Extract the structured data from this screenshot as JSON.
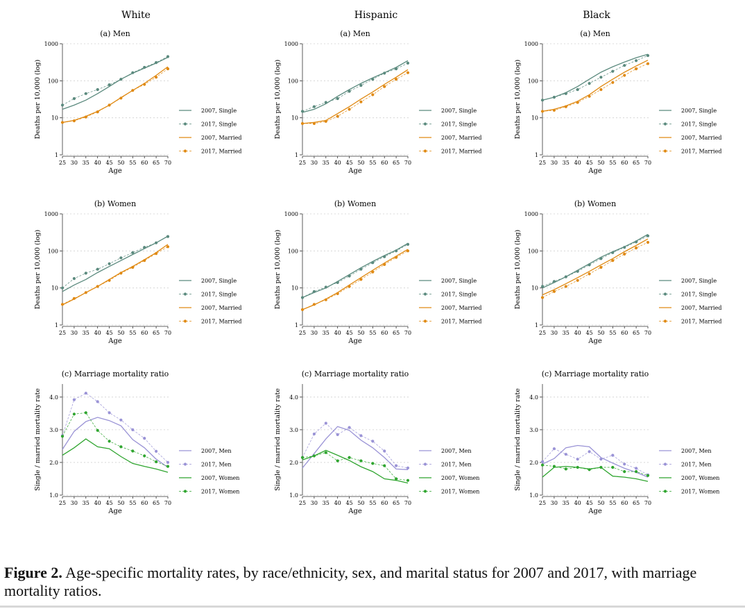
{
  "figure": {
    "columns": [
      "White",
      "Hispanic",
      "Black"
    ],
    "caption_label": "Figure 2.",
    "caption_text": " Age-specific mortality rates, by race/ethnicity, sex, and marital status for 2007 and 2017, with marriage mortality ratios."
  },
  "colors": {
    "single": "#5b8a7e",
    "married": "#e08a14",
    "men": "#9a93d6",
    "women": "#2fa52f",
    "grid": "#cfcfcf"
  },
  "chart_data": [
    {
      "id": "white-men",
      "column": "White",
      "row": 0,
      "type": "line",
      "title": "(a) Men",
      "xlabel": "Age",
      "ylabel": "Deaths per 10,000 (log)",
      "yscale": "log",
      "ylim": [
        1,
        1000
      ],
      "yticks": [
        1,
        10,
        100,
        1000
      ],
      "yticklabels": [
        "1",
        "10",
        "100",
        "1000"
      ],
      "x": [
        25,
        30,
        35,
        40,
        45,
        50,
        55,
        60,
        65,
        70
      ],
      "series": [
        {
          "name": "2007, Single",
          "kind": "single",
          "style": "line",
          "values": [
            17,
            22,
            30,
            45,
            70,
            110,
            160,
            220,
            300,
            430
          ]
        },
        {
          "name": "2017, Single",
          "kind": "single",
          "style": "dots",
          "values": [
            22,
            33,
            45,
            58,
            78,
            110,
            165,
            230,
            310,
            450
          ]
        },
        {
          "name": "2007, Married",
          "kind": "married",
          "style": "line",
          "values": [
            7.5,
            8.5,
            11,
            15,
            22,
            35,
            55,
            85,
            140,
            240
          ]
        },
        {
          "name": "2017, Married",
          "kind": "married",
          "style": "dots",
          "values": [
            7.5,
            8.3,
            10.5,
            14.5,
            22,
            34,
            55,
            80,
            125,
            210
          ]
        }
      ]
    },
    {
      "id": "hispanic-men",
      "column": "Hispanic",
      "row": 0,
      "type": "line",
      "title": "(a) Men",
      "xlabel": "Age",
      "ylabel": "Deaths per 10,000 (log)",
      "yscale": "log",
      "ylim": [
        1,
        1000
      ],
      "yticks": [
        1,
        10,
        100,
        1000
      ],
      "yticklabels": [
        "1",
        "10",
        "100",
        "1000"
      ],
      "x": [
        25,
        30,
        35,
        40,
        45,
        50,
        55,
        60,
        65,
        70
      ],
      "series": [
        {
          "name": "2007, Single",
          "kind": "single",
          "style": "line",
          "values": [
            14,
            17,
            24,
            38,
            58,
            85,
            120,
            165,
            230,
            350
          ]
        },
        {
          "name": "2017, Single",
          "kind": "single",
          "style": "dots",
          "values": [
            15,
            20,
            26,
            33,
            52,
            75,
            110,
            160,
            210,
            300
          ]
        },
        {
          "name": "2007, Married",
          "kind": "married",
          "style": "line",
          "values": [
            7,
            7.5,
            8.5,
            13,
            20,
            32,
            50,
            80,
            125,
            200
          ]
        },
        {
          "name": "2017, Married",
          "kind": "married",
          "style": "dots",
          "values": [
            7,
            7,
            8,
            11,
            17,
            27,
            42,
            70,
            110,
            165
          ]
        }
      ]
    },
    {
      "id": "black-men",
      "column": "Black",
      "row": 0,
      "type": "line",
      "title": "(a) Men",
      "xlabel": "Age",
      "ylabel": "Deaths per 10,000 (log)",
      "yscale": "log",
      "ylim": [
        1,
        1000
      ],
      "yticks": [
        1,
        10,
        100,
        1000
      ],
      "yticklabels": [
        "1",
        "10",
        "100",
        "1000"
      ],
      "x": [
        25,
        30,
        35,
        40,
        45,
        50,
        55,
        60,
        65,
        70
      ],
      "series": [
        {
          "name": "2007, Single",
          "kind": "single",
          "style": "line",
          "values": [
            30,
            36,
            48,
            70,
            110,
            170,
            240,
            320,
            420,
            520
          ]
        },
        {
          "name": "2017, Single",
          "kind": "single",
          "style": "dots",
          "values": [
            30,
            36,
            45,
            58,
            85,
            125,
            180,
            260,
            350,
            480
          ]
        },
        {
          "name": "2007, Married",
          "kind": "married",
          "style": "line",
          "values": [
            15,
            17,
            21,
            28,
            42,
            70,
            110,
            170,
            250,
            360
          ]
        },
        {
          "name": "2017, Married",
          "kind": "married",
          "style": "dots",
          "values": [
            15,
            16,
            20,
            26,
            38,
            58,
            90,
            140,
            210,
            290
          ]
        }
      ]
    },
    {
      "id": "white-women",
      "column": "White",
      "row": 1,
      "type": "line",
      "title": "(b) Women",
      "xlabel": "Age",
      "ylabel": "Deaths per 10,000 (log)",
      "yscale": "log",
      "ylim": [
        1,
        1000
      ],
      "yticks": [
        1,
        10,
        100,
        1000
      ],
      "yticklabels": [
        "1",
        "10",
        "100",
        "1000"
      ],
      "x": [
        25,
        30,
        35,
        40,
        45,
        50,
        55,
        60,
        65,
        70
      ],
      "series": [
        {
          "name": "2007, Single",
          "kind": "single",
          "style": "line",
          "values": [
            8,
            12,
            17,
            26,
            38,
            55,
            80,
            115,
            165,
            250
          ]
        },
        {
          "name": "2017, Single",
          "kind": "single",
          "style": "dots",
          "values": [
            10,
            18,
            25,
            32,
            45,
            65,
            90,
            125,
            165,
            245
          ]
        },
        {
          "name": "2007, Married",
          "kind": "married",
          "style": "line",
          "values": [
            3.5,
            5,
            7.5,
            11,
            17,
            26,
            38,
            58,
            90,
            150
          ]
        },
        {
          "name": "2017, Married",
          "kind": "married",
          "style": "dots",
          "values": [
            3.6,
            5.2,
            7.5,
            11,
            16,
            25,
            36,
            55,
            85,
            130
          ]
        }
      ]
    },
    {
      "id": "hispanic-women",
      "column": "Hispanic",
      "row": 1,
      "type": "line",
      "title": "(b) Women",
      "xlabel": "Age",
      "ylabel": "Deaths per 10,000 (log)",
      "yscale": "log",
      "ylim": [
        1,
        1000
      ],
      "yticks": [
        1,
        10,
        100,
        1000
      ],
      "yticklabels": [
        "1",
        "10",
        "100",
        "1000"
      ],
      "x": [
        25,
        30,
        35,
        40,
        45,
        50,
        55,
        60,
        65,
        70
      ],
      "series": [
        {
          "name": "2007, Single",
          "kind": "single",
          "style": "line",
          "values": [
            5.5,
            7.5,
            10,
            15,
            23,
            35,
            52,
            75,
            105,
            160
          ]
        },
        {
          "name": "2017, Single",
          "kind": "single",
          "style": "dots",
          "values": [
            5.5,
            8,
            10.5,
            14,
            21,
            32,
            48,
            70,
            100,
            150
          ]
        },
        {
          "name": "2007, Married",
          "kind": "married",
          "style": "line",
          "values": [
            2.6,
            3.5,
            5,
            7.5,
            12,
            19,
            30,
            47,
            72,
            110
          ]
        },
        {
          "name": "2017, Married",
          "kind": "married",
          "style": "dots",
          "values": [
            2.6,
            3.6,
            4.8,
            7,
            11,
            17,
            27,
            43,
            67,
            100
          ]
        }
      ]
    },
    {
      "id": "black-women",
      "column": "Black",
      "row": 1,
      "type": "line",
      "title": "(b) Women",
      "xlabel": "Age",
      "ylabel": "Deaths per 10,000 (log)",
      "yscale": "log",
      "ylim": [
        1,
        1000
      ],
      "yticks": [
        1,
        10,
        100,
        1000
      ],
      "yticklabels": [
        "1",
        "10",
        "100",
        "1000"
      ],
      "x": [
        25,
        30,
        35,
        40,
        45,
        50,
        55,
        60,
        65,
        70
      ],
      "series": [
        {
          "name": "2007, Single",
          "kind": "single",
          "style": "line",
          "values": [
            10,
            14,
            20,
            30,
            45,
            68,
            95,
            130,
            185,
            280
          ]
        },
        {
          "name": "2017, Single",
          "kind": "single",
          "style": "dots",
          "values": [
            11,
            15,
            20,
            28,
            42,
            62,
            90,
            125,
            175,
            255
          ]
        },
        {
          "name": "2007, Married",
          "kind": "married",
          "style": "line",
          "values": [
            6.5,
            9,
            13,
            19,
            28,
            42,
            62,
            95,
            140,
            210
          ]
        },
        {
          "name": "2017, Married",
          "kind": "married",
          "style": "dots",
          "values": [
            5.5,
            8,
            11,
            16,
            24,
            36,
            55,
            82,
            120,
            170
          ]
        }
      ]
    },
    {
      "id": "white-ratio",
      "column": "White",
      "row": 2,
      "type": "line",
      "title": "(c) Marriage mortality ratio",
      "xlabel": "Age",
      "ylabel": "Single / married mortality rate",
      "yscale": "linear",
      "ylim": [
        1,
        4.4
      ],
      "yticks": [
        1,
        2,
        3,
        4
      ],
      "yticklabels": [
        "1.0",
        "2.0",
        "3.0",
        "4.0"
      ],
      "x": [
        25,
        30,
        35,
        40,
        45,
        50,
        55,
        60,
        65,
        70
      ],
      "series": [
        {
          "name": "2007, Men",
          "kind": "men",
          "style": "line",
          "values": [
            2.4,
            2.95,
            3.25,
            3.38,
            3.28,
            3.12,
            2.7,
            2.45,
            2.1,
            1.85
          ]
        },
        {
          "name": "2017, Men",
          "kind": "men",
          "style": "dots",
          "values": [
            2.82,
            3.92,
            4.12,
            3.86,
            3.52,
            3.3,
            3.0,
            2.74,
            2.34,
            2.0
          ]
        },
        {
          "name": "2007, Women",
          "kind": "women",
          "style": "line",
          "values": [
            2.22,
            2.45,
            2.72,
            2.48,
            2.42,
            2.18,
            1.97,
            1.88,
            1.8,
            1.7
          ]
        },
        {
          "name": "2017, Women",
          "kind": "women",
          "style": "dots",
          "values": [
            2.8,
            3.48,
            3.52,
            2.98,
            2.65,
            2.48,
            2.35,
            2.2,
            2.02,
            1.88
          ]
        }
      ]
    },
    {
      "id": "hispanic-ratio",
      "column": "Hispanic",
      "row": 2,
      "type": "line",
      "title": "(c) Marriage mortality ratio",
      "xlabel": "Age",
      "ylabel": "Single / married mortality rate",
      "yscale": "linear",
      "ylim": [
        1,
        4.4
      ],
      "yticks": [
        1,
        2,
        3,
        4
      ],
      "yticklabels": [
        "1.0",
        "2.0",
        "3.0",
        "4.0"
      ],
      "x": [
        25,
        30,
        35,
        40,
        45,
        50,
        55,
        60,
        65,
        70
      ],
      "series": [
        {
          "name": "2007, Men",
          "kind": "men",
          "style": "line",
          "values": [
            1.83,
            2.27,
            2.72,
            3.1,
            2.98,
            2.68,
            2.45,
            2.15,
            1.8,
            1.78
          ]
        },
        {
          "name": "2017, Men",
          "kind": "men",
          "style": "dots",
          "values": [
            2.15,
            2.87,
            3.2,
            2.85,
            3.07,
            2.82,
            2.65,
            2.35,
            1.9,
            1.83
          ]
        },
        {
          "name": "2007, Women",
          "kind": "women",
          "style": "line",
          "values": [
            2.08,
            2.2,
            2.37,
            2.22,
            2.06,
            1.87,
            1.72,
            1.5,
            1.45,
            1.37
          ]
        },
        {
          "name": "2017, Women",
          "kind": "women",
          "style": "dots",
          "values": [
            2.15,
            2.2,
            2.3,
            2.05,
            2.15,
            2.05,
            1.97,
            1.9,
            1.5,
            1.45
          ]
        }
      ]
    },
    {
      "id": "black-ratio",
      "column": "Black",
      "row": 2,
      "type": "line",
      "title": "(c) Marriage mortality ratio",
      "xlabel": "Age",
      "ylabel": "Single / married mortality rate",
      "yscale": "linear",
      "ylim": [
        1,
        4.4
      ],
      "yticks": [
        1,
        2,
        3,
        4
      ],
      "yticklabels": [
        "1.0",
        "2.0",
        "3.0",
        "4.0"
      ],
      "x": [
        25,
        30,
        35,
        40,
        45,
        50,
        55,
        60,
        65,
        70
      ],
      "series": [
        {
          "name": "2007, Men",
          "kind": "men",
          "style": "line",
          "values": [
            1.95,
            2.12,
            2.45,
            2.52,
            2.48,
            2.15,
            1.98,
            1.82,
            1.7,
            1.55
          ]
        },
        {
          "name": "2017, Men",
          "kind": "men",
          "style": "dots",
          "values": [
            2.02,
            2.42,
            2.25,
            2.1,
            2.33,
            2.1,
            2.22,
            1.95,
            1.82,
            1.62
          ]
        },
        {
          "name": "2007, Women",
          "kind": "women",
          "style": "line",
          "values": [
            1.55,
            1.85,
            1.88,
            1.85,
            1.8,
            1.85,
            1.58,
            1.55,
            1.5,
            1.42
          ]
        },
        {
          "name": "2017, Women",
          "kind": "women",
          "style": "dots",
          "values": [
            1.92,
            1.88,
            1.8,
            1.85,
            1.78,
            1.85,
            1.85,
            1.72,
            1.72,
            1.6
          ]
        }
      ]
    }
  ]
}
